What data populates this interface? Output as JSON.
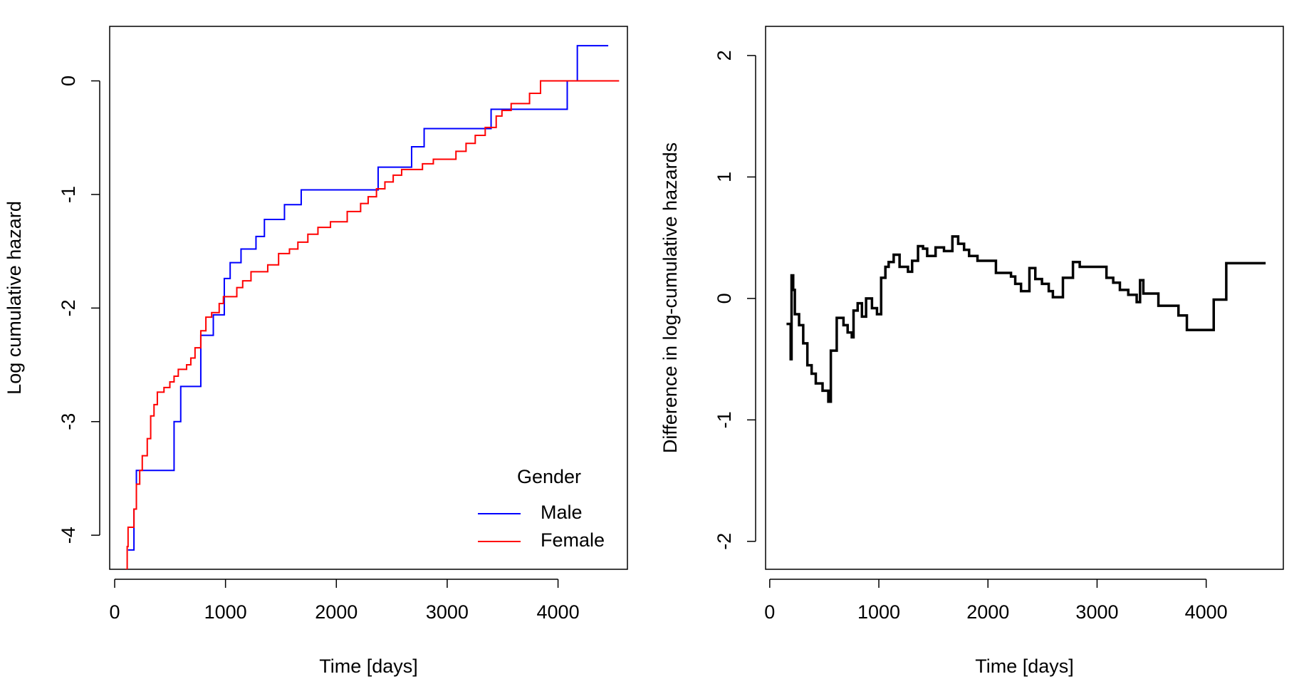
{
  "chart_data": [
    {
      "type": "line",
      "step": "post",
      "xlabel": "Time [days]",
      "ylabel": "Log cumulative hazard",
      "xlim": [
        -45,
        4626
      ],
      "ylim": [
        -4.3,
        0.48
      ],
      "xticks": [
        0,
        1000,
        2000,
        3000,
        4000
      ],
      "yticks": [
        -4,
        -3,
        -2,
        -1,
        0
      ],
      "legend_title": "Gender",
      "legend": "bottomright",
      "series": [
        {
          "name": "Male",
          "color": "#0000ff",
          "x": [
            121,
            174,
            196,
            536,
            596,
            777,
            890,
            989,
            1042,
            1140,
            1275,
            1351,
            1532,
            1683,
            2377,
            2679,
            2792,
            3396,
            4083,
            4174,
            4453
          ],
          "values": [
            -4.13,
            -3.77,
            -3.43,
            -3.0,
            -2.69,
            -2.24,
            -2.06,
            -1.74,
            -1.6,
            -1.48,
            -1.37,
            -1.22,
            -1.09,
            -0.96,
            -0.76,
            -0.58,
            -0.42,
            -0.25,
            0.0,
            0.31,
            0.31
          ]
        },
        {
          "name": "Female",
          "color": "#ff0000",
          "x": [
            98,
            113,
            121,
            174,
            196,
            226,
            249,
            294,
            325,
            355,
            385,
            445,
            498,
            536,
            574,
            649,
            687,
            725,
            777,
            823,
            875,
            943,
            981,
            1102,
            1155,
            1230,
            1381,
            1479,
            1577,
            1653,
            1743,
            1834,
            1947,
            2098,
            2219,
            2287,
            2362,
            2438,
            2513,
            2589,
            2777,
            2875,
            3079,
            3170,
            3253,
            3343,
            3442,
            3494,
            3577,
            3743,
            3842,
            4551
          ],
          "values": [
            -4.3,
            -4.1,
            -3.93,
            -3.77,
            -3.55,
            -3.43,
            -3.3,
            -3.15,
            -2.95,
            -2.85,
            -2.74,
            -2.7,
            -2.65,
            -2.6,
            -2.54,
            -2.5,
            -2.44,
            -2.35,
            -2.2,
            -2.08,
            -2.04,
            -1.96,
            -1.9,
            -1.82,
            -1.76,
            -1.68,
            -1.62,
            -1.52,
            -1.48,
            -1.42,
            -1.35,
            -1.29,
            -1.24,
            -1.15,
            -1.08,
            -1.02,
            -0.95,
            -0.89,
            -0.83,
            -0.78,
            -0.73,
            -0.69,
            -0.62,
            -0.55,
            -0.48,
            -0.41,
            -0.31,
            -0.26,
            -0.2,
            -0.11,
            0.0,
            0.0
          ]
        }
      ]
    },
    {
      "type": "line",
      "step": "post",
      "xlabel": "Time [days]",
      "ylabel": "Difference in log-cumulative hazards",
      "xlim": [
        -38,
        4707
      ],
      "ylim": [
        -2.23,
        2.24
      ],
      "xticks": [
        0,
        1000,
        2000,
        3000,
        4000
      ],
      "yticks": [
        -2,
        -1,
        0,
        1,
        2
      ],
      "series": [
        {
          "color": "#000000",
          "x": [
            154,
            192,
            200,
            215,
            230,
            269,
            307,
            345,
            384,
            422,
            484,
            537,
            560,
            614,
            676,
            714,
            752,
            768,
            806,
            845,
            883,
            937,
            983,
            1021,
            1060,
            1090,
            1136,
            1190,
            1267,
            1305,
            1359,
            1405,
            1443,
            1520,
            1597,
            1674,
            1727,
            1781,
            1827,
            1904,
            2073,
            2211,
            2250,
            2303,
            2380,
            2434,
            2495,
            2557,
            2595,
            2687,
            2779,
            2841,
            3086,
            3148,
            3209,
            3286,
            3363,
            3394,
            3424,
            3562,
            3746,
            3823,
            4069,
            4184,
            4545
          ],
          "values": [
            -0.21,
            -0.5,
            0.19,
            0.07,
            -0.13,
            -0.22,
            -0.37,
            -0.55,
            -0.62,
            -0.7,
            -0.76,
            -0.85,
            -0.43,
            -0.16,
            -0.22,
            -0.28,
            -0.32,
            -0.1,
            -0.04,
            -0.15,
            0.0,
            -0.08,
            -0.13,
            0.17,
            0.26,
            0.3,
            0.36,
            0.26,
            0.22,
            0.31,
            0.43,
            0.41,
            0.35,
            0.42,
            0.39,
            0.51,
            0.45,
            0.4,
            0.35,
            0.31,
            0.21,
            0.18,
            0.12,
            0.06,
            0.25,
            0.16,
            0.12,
            0.06,
            0.01,
            0.17,
            0.3,
            0.26,
            0.17,
            0.13,
            0.07,
            0.03,
            -0.03,
            0.15,
            0.04,
            -0.06,
            -0.14,
            -0.26,
            -0.01,
            0.29,
            0.29
          ]
        }
      ]
    }
  ]
}
